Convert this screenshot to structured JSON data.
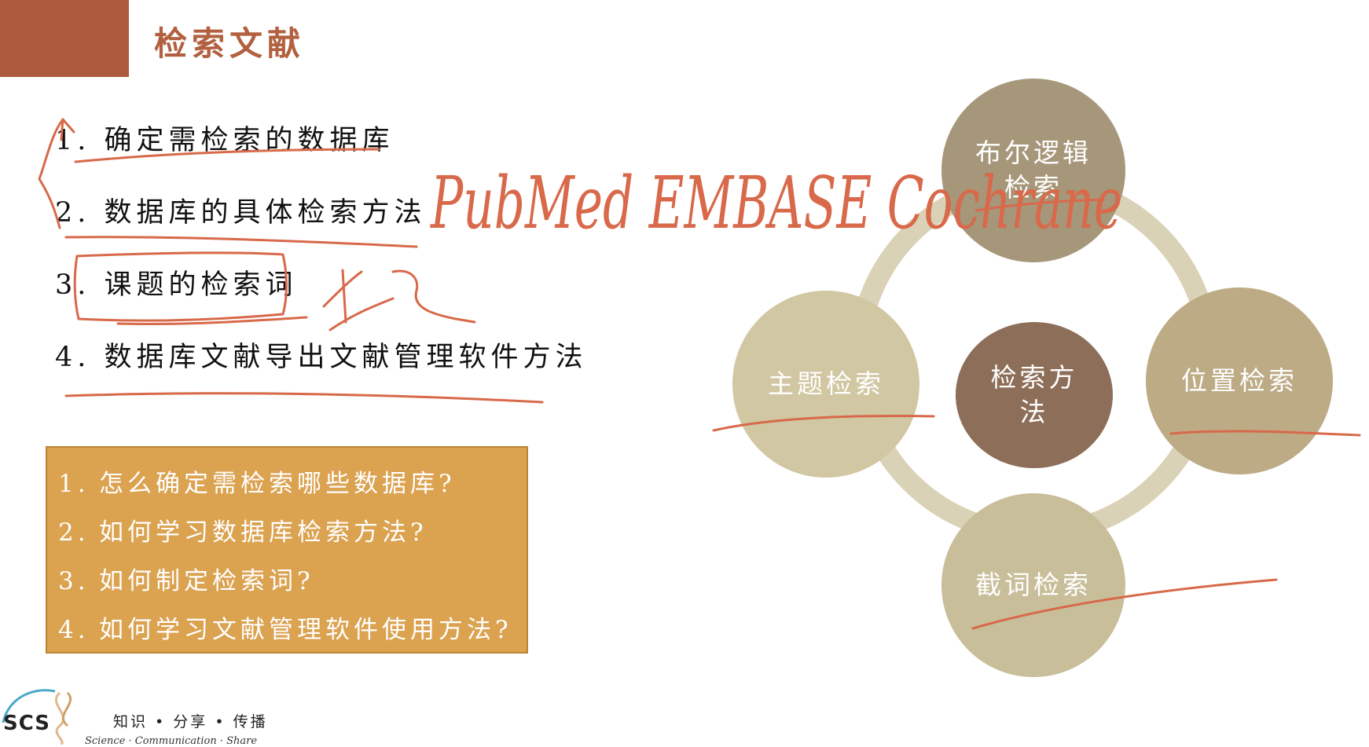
{
  "header": {
    "title": "检索文献"
  },
  "steps": [
    "1. 确定需检索的数据库",
    "2. 数据库的具体检索方法",
    "3. 课题的检索词",
    "4. 数据库文献导出文献管理软件方法"
  ],
  "questions": [
    {
      "num": "1.",
      "text": "怎么确定需检索哪些数据库?"
    },
    {
      "num": "2.",
      "text": "如何学习数据库检索方法?"
    },
    {
      "num": "3.",
      "text": "如何制定检索词?"
    },
    {
      "num": "4.",
      "text": "如何学习文献管理软件使用方法?"
    }
  ],
  "diagram": {
    "center": "检索方法",
    "top": "布尔逻辑检索",
    "right": "位置检索",
    "bottom": "截词检索",
    "left": "主题检索"
  },
  "handwriting": {
    "databases": "PubMed  EMBASE  Cochrane"
  },
  "footer": {
    "logo": "SCS",
    "slogan": "知识 • 分享 • 传播",
    "slogan_en": "Science · Communication · Share"
  },
  "colors": {
    "header_block": "#ad5a3e",
    "header_title": "#b2603f",
    "question_box": "#dba250",
    "center_node": "#8d6e58",
    "ink": "#d8694a"
  }
}
